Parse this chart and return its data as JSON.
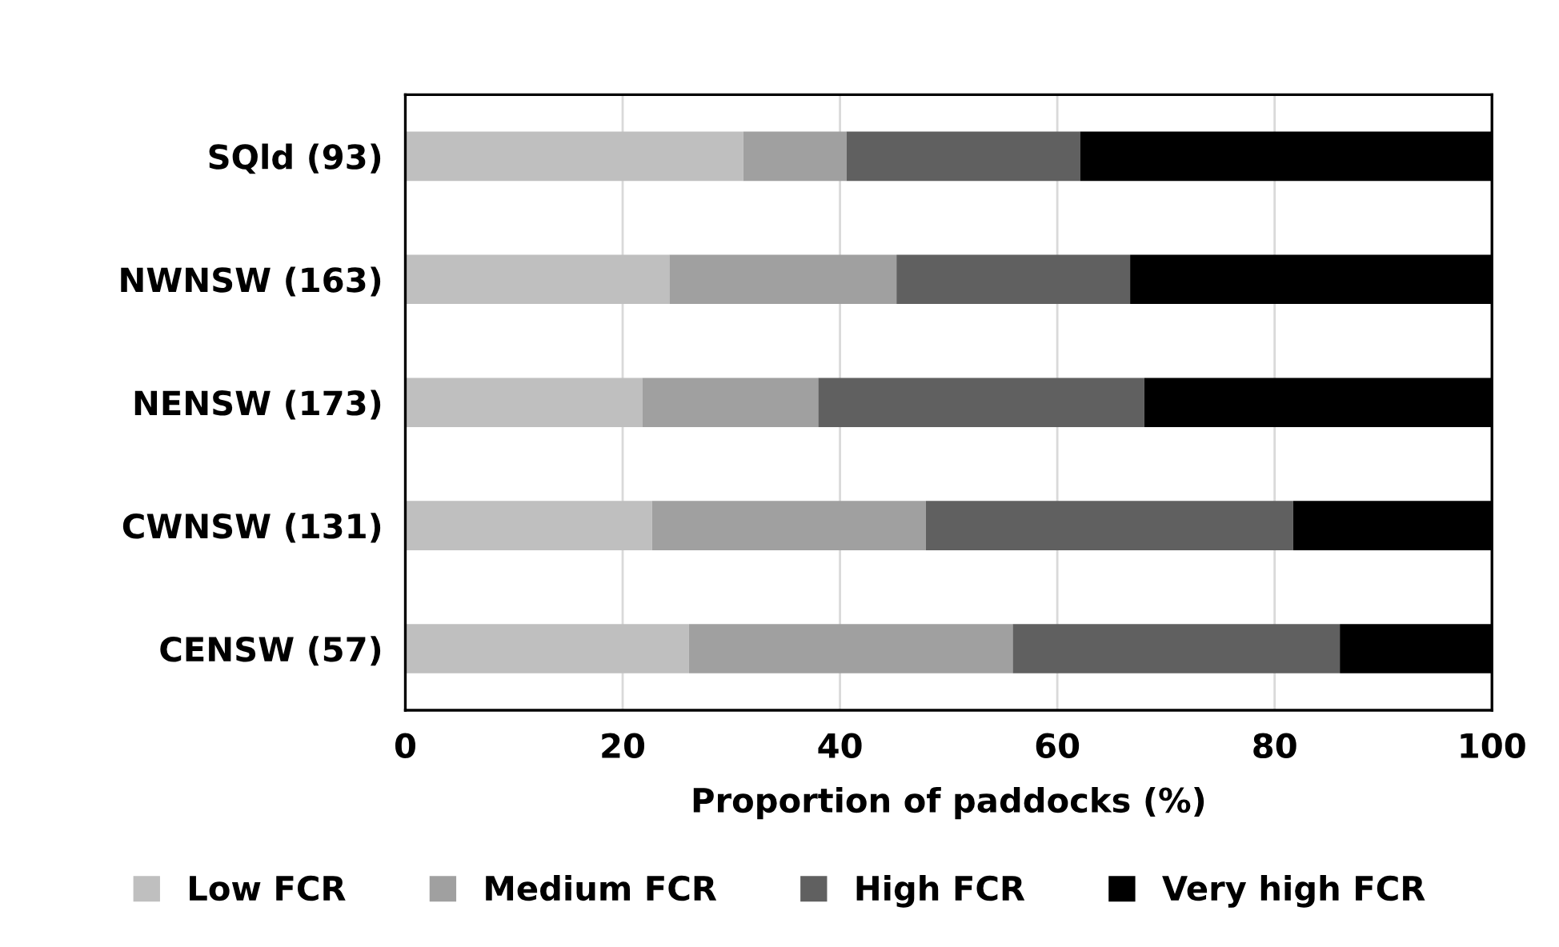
{
  "chart_data": {
    "type": "bar",
    "orientation": "horizontal",
    "stacked": true,
    "categories": [
      "SQld (93)",
      "NWNSW (163)",
      "NENSW (173)",
      "CWNSW (131)",
      "CENSW (57)"
    ],
    "series": [
      {
        "name": "Low FCR",
        "color": "#bfbfbf",
        "values": [
          31.1,
          24.3,
          21.8,
          22.7,
          26.1
        ]
      },
      {
        "name": "Medium FCR",
        "color": "#a0a0a0",
        "values": [
          9.5,
          20.9,
          16.2,
          25.2,
          29.8
        ]
      },
      {
        "name": "High FCR",
        "color": "#606060",
        "values": [
          21.5,
          21.5,
          30.0,
          33.8,
          30.1
        ]
      },
      {
        "name": "Very high FCR",
        "color": "#000000",
        "values": [
          37.9,
          33.3,
          32.0,
          18.3,
          14.0
        ]
      }
    ],
    "xlabel": "Proportion of paddocks (%)",
    "xlim": [
      0,
      100
    ],
    "xticks": [
      0,
      20,
      40,
      60,
      80,
      100
    ],
    "grid": "x",
    "legend": "bottom"
  }
}
